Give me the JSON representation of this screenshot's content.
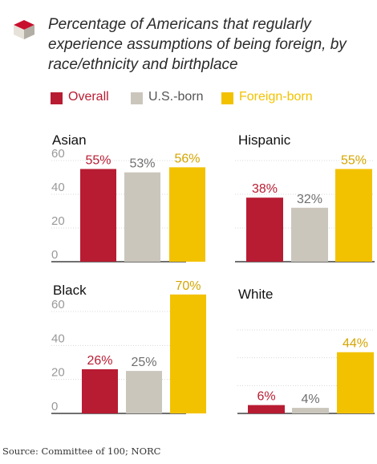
{
  "title": "Percentage of Americans that regularly experience assumptions of being foreign, by race/ethnicity and birthplace",
  "legend": [
    {
      "label": "Overall",
      "color": "#b81c32"
    },
    {
      "label": "U.S.-born",
      "color": "#cbc6bc"
    },
    {
      "label": "Foreign-born",
      "color": "#f2c200"
    }
  ],
  "colors": {
    "overall": "#b81c32",
    "us_born": "#cbc6bc",
    "foreign_born": "#f2c200",
    "overall_label": "#b81c32",
    "us_born_label": "#6f6f6f",
    "foreign_born_label": "#d4a500",
    "axis_text": "#999999",
    "grid": "#d8d8d8"
  },
  "chart_data": [
    {
      "type": "bar",
      "title": "Asian",
      "categories": [
        "Overall",
        "U.S.-born",
        "Foreign-born"
      ],
      "values": [
        55,
        53,
        56
      ],
      "labels": [
        "55%",
        "53%",
        "56%"
      ],
      "yticks": [
        "60",
        "40",
        "20",
        "0"
      ],
      "ylim": [
        0,
        60
      ],
      "show_yticks": true
    },
    {
      "type": "bar",
      "title": "Hispanic",
      "categories": [
        "Overall",
        "U.S.-born",
        "Foreign-born"
      ],
      "values": [
        38,
        32,
        55
      ],
      "labels": [
        "38%",
        "32%",
        "55%"
      ],
      "yticks": [],
      "ylim": [
        0,
        60
      ],
      "show_yticks": false
    },
    {
      "type": "bar",
      "title": "Black",
      "categories": [
        "Overall",
        "U.S.-born",
        "Foreign-born"
      ],
      "values": [
        26,
        25,
        70
      ],
      "labels": [
        "26%",
        "25%",
        "70%"
      ],
      "yticks": [
        "60",
        "40",
        "20",
        "0"
      ],
      "ylim": [
        0,
        70
      ],
      "show_yticks": true
    },
    {
      "type": "bar",
      "title": "White",
      "categories": [
        "Overall",
        "U.S.-born",
        "Foreign-born"
      ],
      "values": [
        6,
        4,
        44
      ],
      "labels": [
        "6%",
        "4%",
        "44%"
      ],
      "yticks": [],
      "ylim": [
        0,
        60
      ],
      "show_yticks": false
    }
  ],
  "source": "Source: Committee of 100; NORC"
}
